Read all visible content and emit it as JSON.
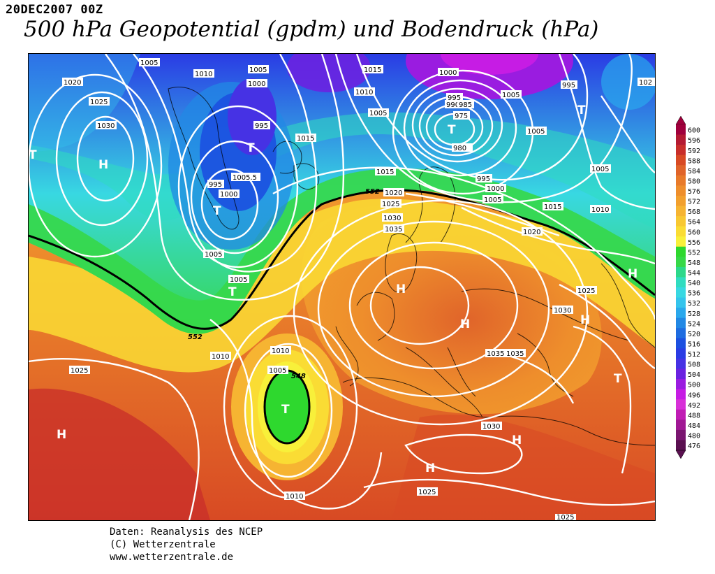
{
  "header": {
    "date": "20DEC2007 00Z",
    "title": "500 hPa Geopotential (gpdm) und Bodendruck (hPa)"
  },
  "credits": {
    "line1": "Daten: Reanalysis des NCEP",
    "line2": "(C) Wetterzentrale",
    "line3": "www.wetterzentrale.de"
  },
  "legend": {
    "levels": [
      600,
      596,
      592,
      588,
      584,
      580,
      576,
      572,
      568,
      564,
      560,
      556,
      552,
      548,
      544,
      540,
      536,
      532,
      528,
      524,
      520,
      516,
      512,
      508,
      504,
      500,
      496,
      492,
      488,
      484,
      480,
      476
    ],
    "colors": [
      "#a0003c",
      "#b41a32",
      "#c82e2a",
      "#d84a24",
      "#e0642a",
      "#e87a2a",
      "#ee8e2c",
      "#f2a02e",
      "#f6b432",
      "#f8c832",
      "#fadc34",
      "#f8f03a",
      "#2ed82e",
      "#36d848",
      "#2cd88a",
      "#30dcc0",
      "#38d8e2",
      "#34c4ec",
      "#2aa8ec",
      "#2288e4",
      "#1e6ce0",
      "#1c50e0",
      "#2a3ce4",
      "#4632e4",
      "#6a22e0",
      "#9a1ce0",
      "#c61ce4",
      "#d830d8",
      "#c01cb4",
      "#a01894",
      "#7a1670",
      "#5a1050"
    ]
  },
  "map_data": {
    "field_500hpa_gpdm_label": "552",
    "features": {
      "highs": [
        "H",
        "H",
        "H",
        "H",
        "H",
        "H",
        "H",
        "H"
      ],
      "lows": [
        "T",
        "T",
        "T",
        "T",
        "T",
        "T",
        "T",
        "T",
        "T",
        "T"
      ]
    },
    "isobar_labels": [
      "1005",
      "1010",
      "1005",
      "1015",
      "1000",
      "1020",
      "1025",
      "1030",
      "995",
      "1005.5",
      "995",
      "1000",
      "1005",
      "1005",
      "1015",
      "1010",
      "1005",
      "995",
      "990",
      "985",
      "975",
      "980",
      "1005",
      "1005",
      "1000",
      "995",
      "995",
      "1000",
      "1005",
      "1005",
      "1015",
      "1010",
      "1020",
      "1025",
      "1030",
      "1035",
      "1015",
      "1020",
      "1025",
      "1030",
      "1035",
      "1035",
      "1030",
      "1025",
      "1010",
      "1025",
      "1005",
      "1010",
      "1010",
      "1010",
      "1030",
      "1025",
      "1025",
      "102"
    ],
    "contour_labels_552": [
      "552",
      "552",
      "548"
    ]
  }
}
